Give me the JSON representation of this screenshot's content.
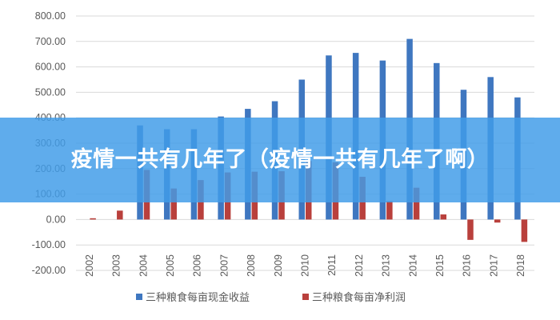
{
  "overlay": {
    "headline": "疫情一共有几年了（疫情一共有几年了啊）"
  },
  "colors": {
    "series1": "#3f77c0",
    "series2": "#b9403c",
    "banner": "#409ce8",
    "grid": "#d9d9d9",
    "text": "#595959"
  },
  "chart_data": {
    "type": "bar",
    "categories": [
      "2002",
      "2003",
      "2004",
      "2005",
      "2006",
      "2007",
      "2008",
      "2009",
      "2010",
      "2011",
      "2012",
      "2013",
      "2014",
      "2015",
      "2016",
      "2017",
      "2018"
    ],
    "series": [
      {
        "name": "三种粮食每亩现金收益",
        "values": [
          0,
          0,
          370,
          355,
          355,
          405,
          435,
          465,
          550,
          645,
          655,
          625,
          710,
          615,
          510,
          560,
          480
        ]
      },
      {
        "name": "三种粮食每亩净利润",
        "values": [
          5,
          35,
          195,
          122,
          155,
          185,
          188,
          190,
          230,
          225,
          168,
          72,
          125,
          20,
          -80,
          -12,
          -88
        ]
      }
    ],
    "yticks": [
      "800.00",
      "700.00",
      "600.00",
      "500.00",
      "400.00",
      "300.00",
      "200.00",
      "100.00",
      "0.00",
      "-100.00",
      "-200.00"
    ],
    "ylim": [
      -200,
      800
    ],
    "grid": true,
    "legend_position": "bottom"
  }
}
